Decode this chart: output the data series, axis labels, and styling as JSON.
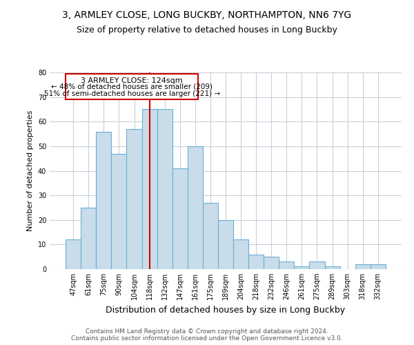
{
  "title1": "3, ARMLEY CLOSE, LONG BUCKBY, NORTHAMPTON, NN6 7YG",
  "title2": "Size of property relative to detached houses in Long Buckby",
  "xlabel": "Distribution of detached houses by size in Long Buckby",
  "ylabel": "Number of detached properties",
  "footer1": "Contains HM Land Registry data © Crown copyright and database right 2024.",
  "footer2": "Contains public sector information licensed under the Open Government Licence v3.0.",
  "annotation_line1": "3 ARMLEY CLOSE: 124sqm",
  "annotation_line2": "← 48% of detached houses are smaller (209)",
  "annotation_line3": "51% of semi-detached houses are larger (221) →",
  "bar_categories": [
    "47sqm",
    "61sqm",
    "75sqm",
    "90sqm",
    "104sqm",
    "118sqm",
    "132sqm",
    "147sqm",
    "161sqm",
    "175sqm",
    "189sqm",
    "204sqm",
    "218sqm",
    "232sqm",
    "246sqm",
    "261sqm",
    "275sqm",
    "289sqm",
    "303sqm",
    "318sqm",
    "332sqm"
  ],
  "bar_values": [
    12,
    25,
    56,
    47,
    57,
    65,
    65,
    41,
    50,
    27,
    20,
    12,
    6,
    5,
    3,
    1,
    3,
    1,
    0,
    2,
    2
  ],
  "bar_color": "#c9dcea",
  "bar_edge_color": "#6aaed6",
  "vline_color": "#cc0000",
  "vline_x_index": 5.5,
  "background_color": "#ffffff",
  "grid_color": "#c8d0da",
  "ylim": [
    0,
    80
  ],
  "yticks": [
    0,
    10,
    20,
    30,
    40,
    50,
    60,
    70,
    80
  ],
  "annotation_box_color": "#cc0000",
  "title1_fontsize": 10,
  "title2_fontsize": 9,
  "annotation_fontsize": 8,
  "ylabel_fontsize": 8,
  "xlabel_fontsize": 9,
  "tick_fontsize": 7,
  "footer_fontsize": 6.5
}
